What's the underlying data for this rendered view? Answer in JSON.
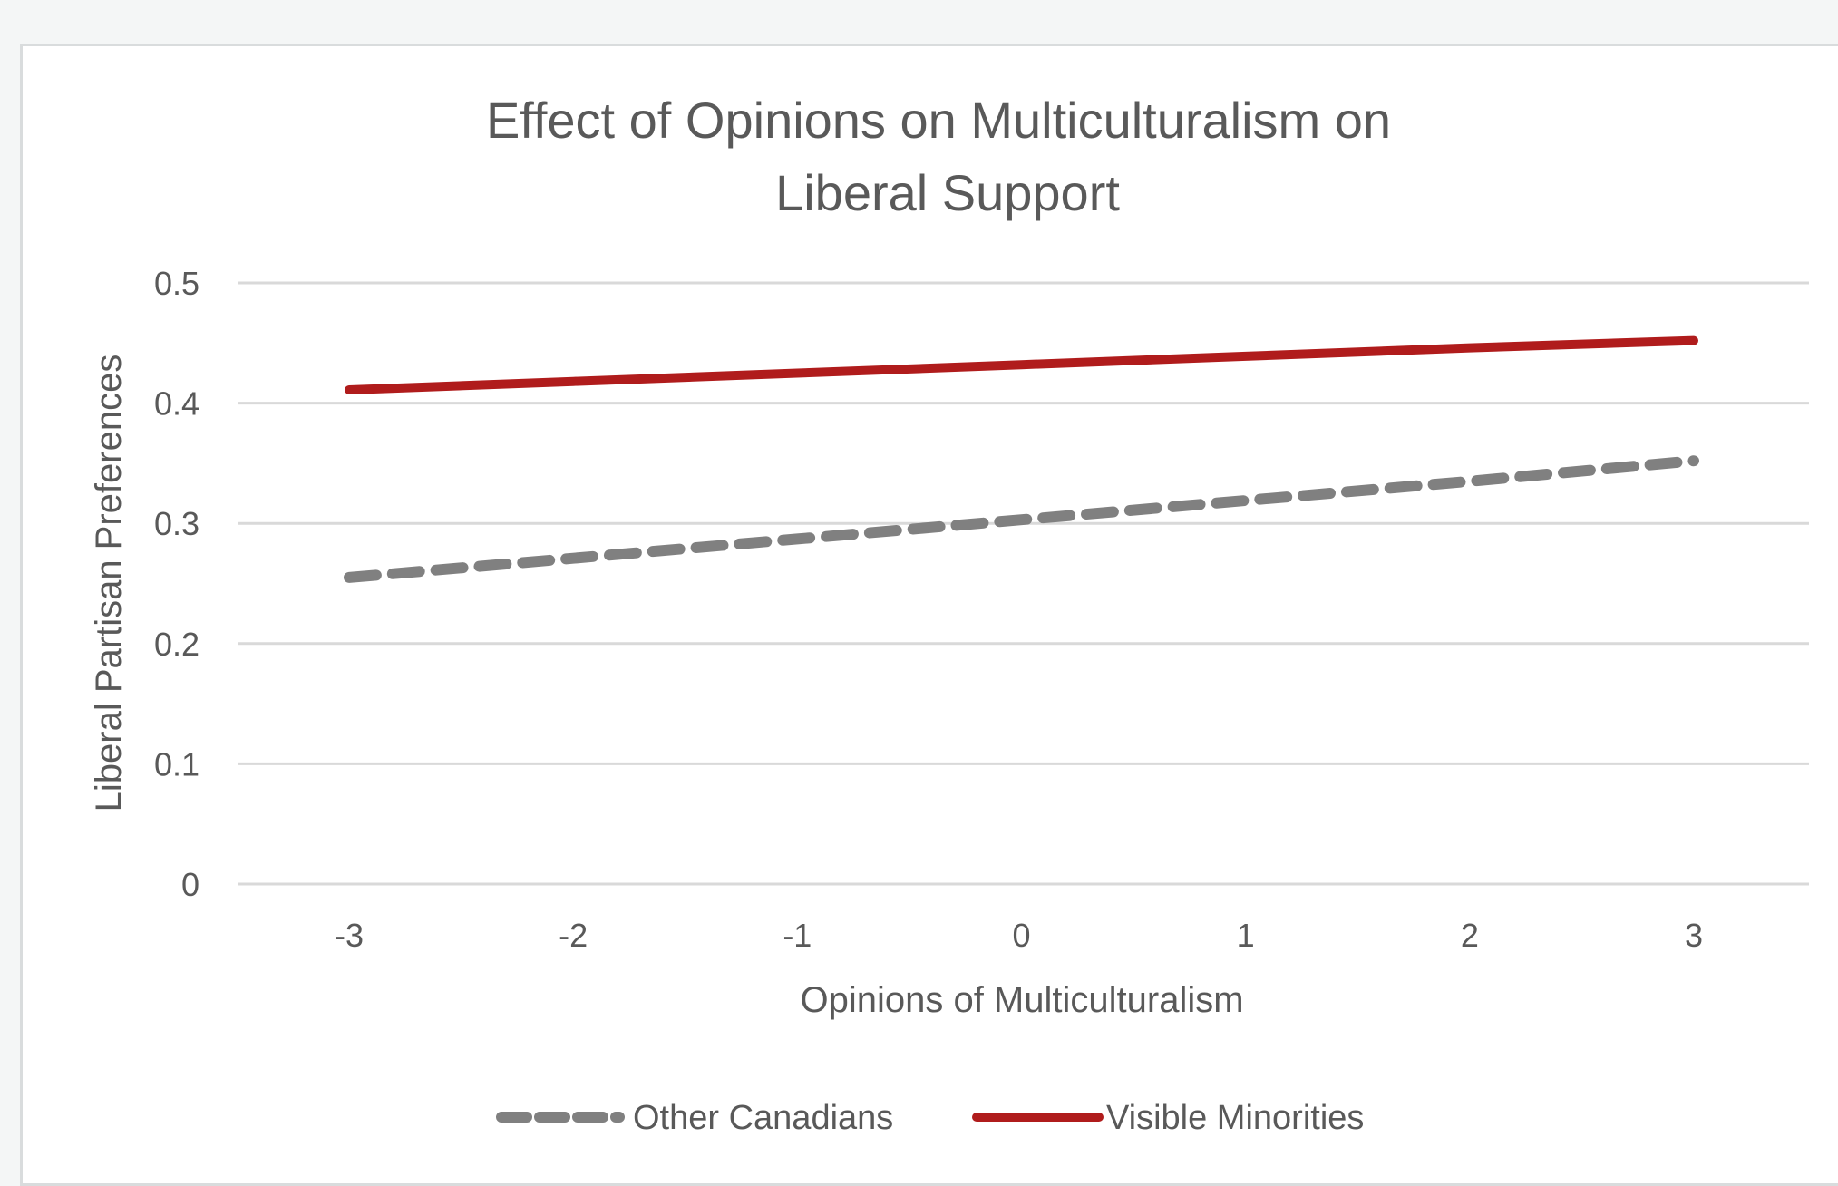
{
  "chart_data": {
    "type": "line",
    "title": [
      "Effect of Opinions on Multiculturalism on",
      "Liberal Support"
    ],
    "xlabel": "Opinions of Multiculturalism",
    "ylabel": "Liberal Partisan Preferences",
    "x": [
      -3,
      -2,
      -1,
      0,
      1,
      2,
      3
    ],
    "x_tick_labels": [
      "-3",
      "-2",
      "-1",
      "0",
      "1",
      "2",
      "3"
    ],
    "ylim": [
      0,
      0.5
    ],
    "y_ticks": [
      0,
      0.1,
      0.2,
      0.3,
      0.4,
      0.5
    ],
    "y_tick_labels": [
      "0",
      "0.1",
      "0.2",
      "0.3",
      "0.4",
      "0.5"
    ],
    "grid": true,
    "legend_position": "bottom",
    "series": [
      {
        "name": "Other Canadians",
        "values": [
          0.255,
          0.271,
          0.287,
          0.303,
          0.319,
          0.335,
          0.352
        ],
        "color": "#808080",
        "style": "dashed"
      },
      {
        "name": "Visible Minorities",
        "values": [
          0.411,
          0.418,
          0.425,
          0.432,
          0.439,
          0.446,
          0.452
        ],
        "color": "#b01c1c",
        "style": "solid"
      }
    ]
  }
}
